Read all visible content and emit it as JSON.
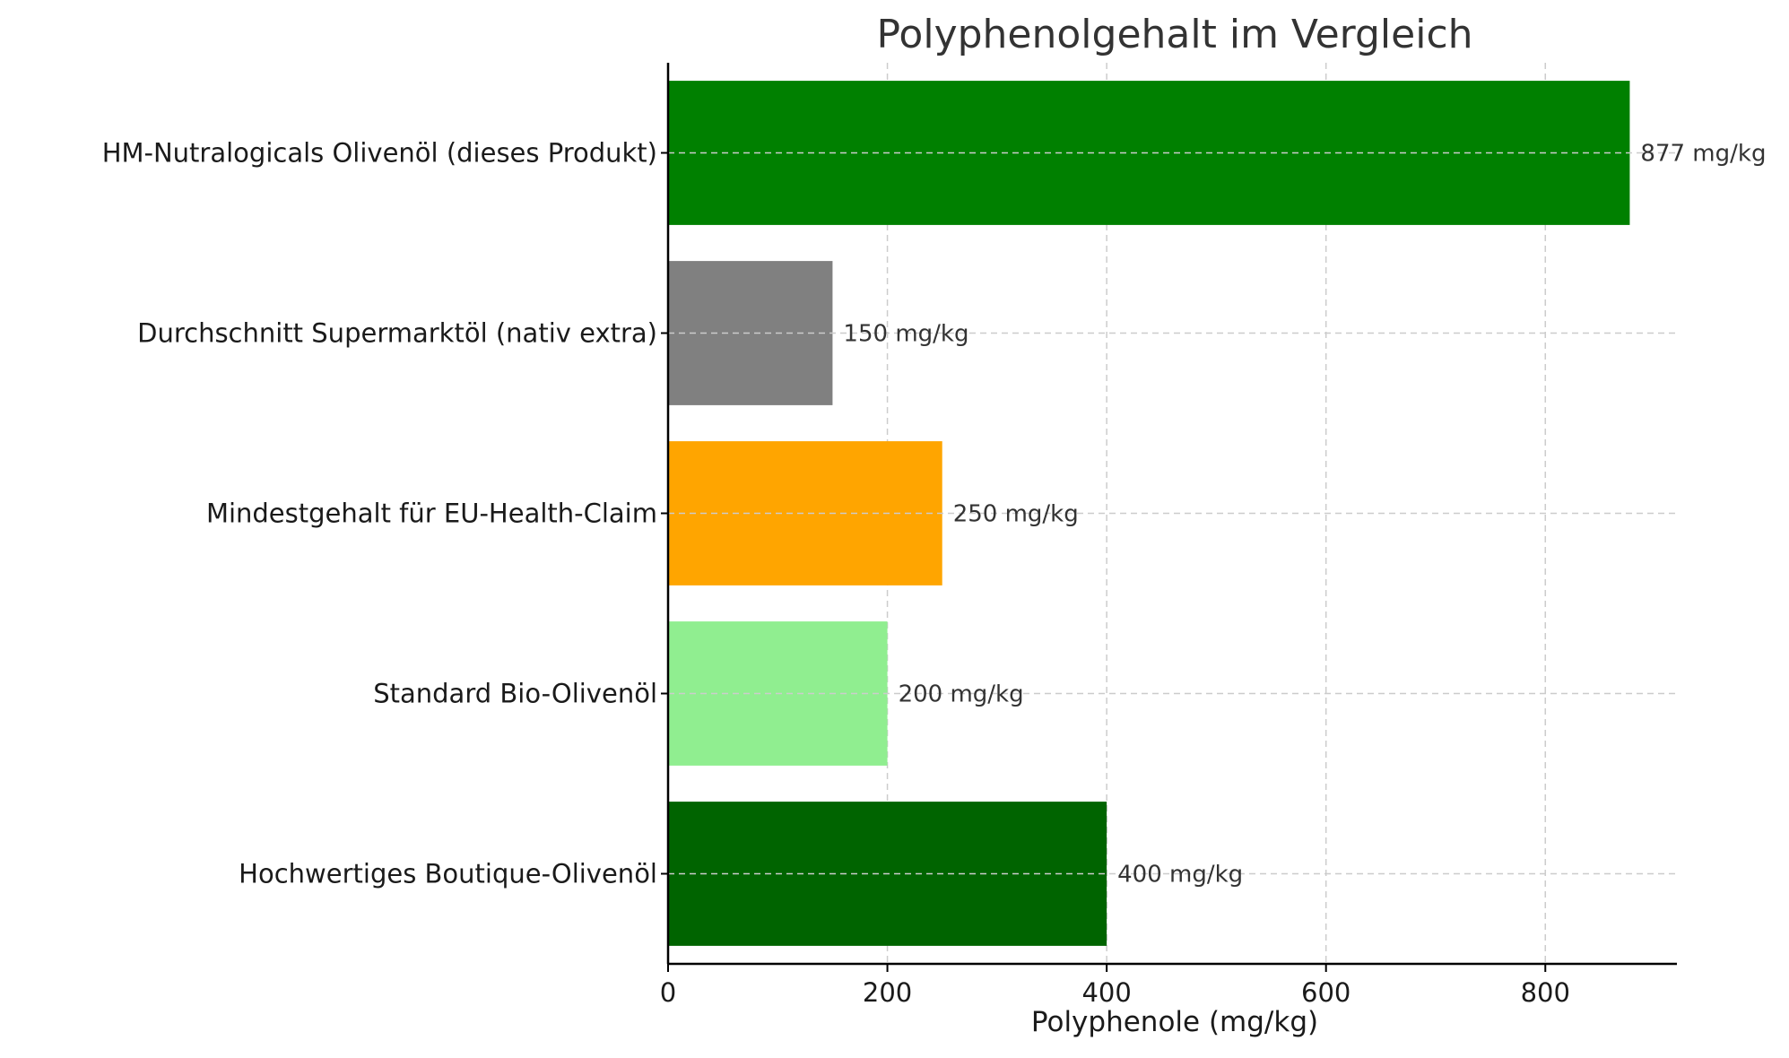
{
  "chart_data": {
    "type": "bar",
    "orientation": "horizontal",
    "title": "Polyphenolgehalt im Vergleich",
    "xlabel": "Polyphenole (mg/kg)",
    "ylabel": "",
    "xlim": [
      0,
      920
    ],
    "xticks": [
      0,
      200,
      400,
      600,
      800
    ],
    "grid": true,
    "unit_suffix": " mg/kg",
    "categories": [
      "HM-Nutralogicals Olivenöl (dieses Produkt)",
      "Durchschnitt Supermarktöl (nativ extra)",
      "Mindestgehalt für EU-Health-Claim",
      "Standard Bio-Olivenöl",
      "Hochwertiges Boutique-Olivenöl"
    ],
    "values": [
      877,
      150,
      250,
      200,
      400
    ],
    "data_labels": [
      "877 mg/kg",
      "150 mg/kg",
      "250 mg/kg",
      "200 mg/kg",
      "400 mg/kg"
    ],
    "colors": [
      "#008000",
      "#808080",
      "#ffa500",
      "#90ee90",
      "#006400"
    ]
  }
}
